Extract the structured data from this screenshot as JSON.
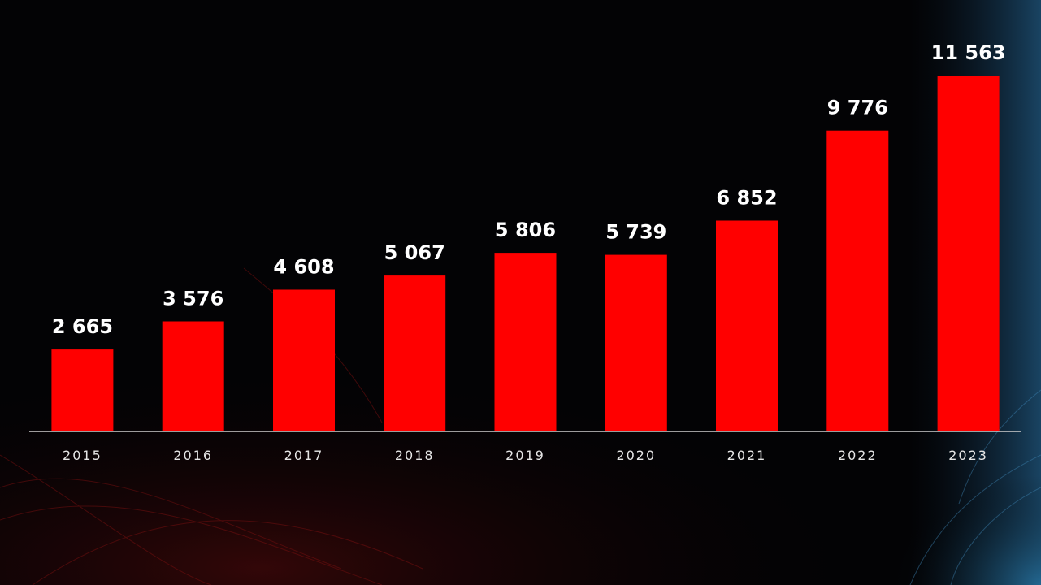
{
  "chart_data": {
    "type": "bar",
    "categories": [
      "2015",
      "2016",
      "2017",
      "2018",
      "2019",
      "2020",
      "2021",
      "2022",
      "2023"
    ],
    "values": [
      2665,
      3576,
      4608,
      5067,
      5806,
      5739,
      6852,
      9776,
      11563
    ],
    "value_labels": [
      "2 665",
      "3 576",
      "4 608",
      "5 067",
      "5 806",
      "5 739",
      "6 852",
      "9 776",
      "11 563"
    ],
    "ylim": [
      0,
      12000
    ],
    "grid": false,
    "legend": "none",
    "colors": {
      "bar": "#ff0000",
      "baseline": "#cfcfcf",
      "background": "#030305"
    }
  }
}
